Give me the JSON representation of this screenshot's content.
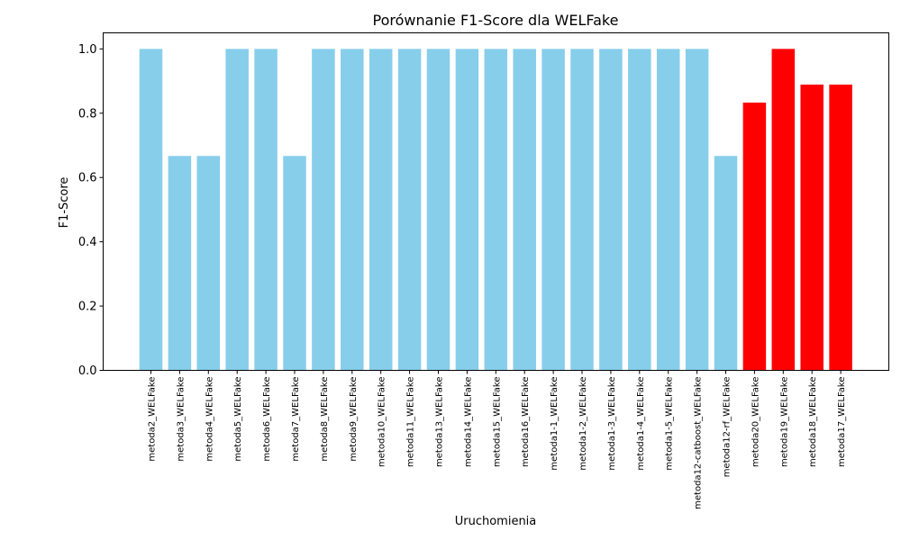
{
  "chart_data": {
    "type": "bar",
    "title": "Porównanie F1-Score dla WELFake",
    "xlabel": "Uruchomienia",
    "ylabel": "F1-Score",
    "ylim": [
      0,
      1.05
    ],
    "yticks": [
      "0.0",
      "0.2",
      "0.4",
      "0.6",
      "0.8",
      "1.0"
    ],
    "grid": false,
    "categories": [
      "metoda2_WELFake",
      "metoda3_WELFake",
      "metoda4_WELFake",
      "metoda5_WELFake",
      "metoda6_WELFake",
      "metoda7_WELFake",
      "metoda8_WELFake",
      "metoda9_WELFake",
      "metoda10_WELFake",
      "metoda11_WELFake",
      "metoda13_WELFake",
      "metoda14_WELFake",
      "metoda15_WELFake",
      "metoda16_WELFake",
      "metoda1-1_WELFake",
      "metoda1-2_WELFake",
      "metoda1-3_WELFake",
      "metoda1-4_WELFake",
      "metoda1-5_WELFake",
      "metoda12-catboost_WELFake",
      "metoda12-rf_WELFake",
      "metoda20_WELFake",
      "metoda19_WELFake",
      "metoda18_WELFake",
      "metoda17_WELFake"
    ],
    "values": [
      1.0,
      0.667,
      0.667,
      1.0,
      1.0,
      0.667,
      1.0,
      1.0,
      1.0,
      1.0,
      1.0,
      1.0,
      1.0,
      1.0,
      1.0,
      1.0,
      1.0,
      1.0,
      1.0,
      1.0,
      0.667,
      0.833,
      1.0,
      0.889,
      0.889
    ],
    "bar_colors": [
      "#87CEEB",
      "#87CEEB",
      "#87CEEB",
      "#87CEEB",
      "#87CEEB",
      "#87CEEB",
      "#87CEEB",
      "#87CEEB",
      "#87CEEB",
      "#87CEEB",
      "#87CEEB",
      "#87CEEB",
      "#87CEEB",
      "#87CEEB",
      "#87CEEB",
      "#87CEEB",
      "#87CEEB",
      "#87CEEB",
      "#87CEEB",
      "#87CEEB",
      "#87CEEB",
      "#FF0000",
      "#FF0000",
      "#FF0000",
      "#FF0000"
    ]
  }
}
